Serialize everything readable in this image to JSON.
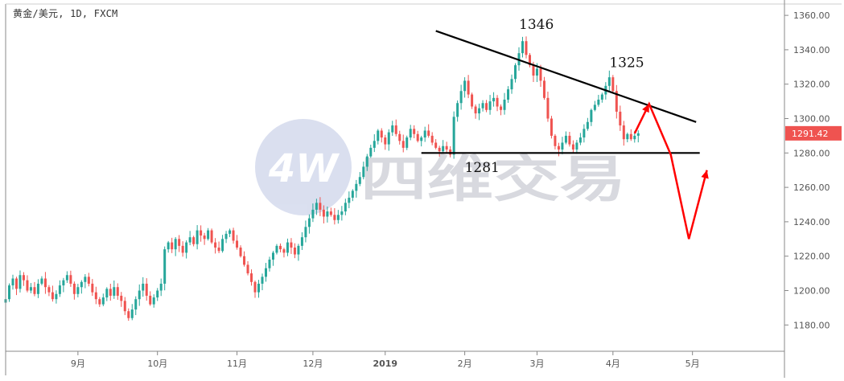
{
  "header": {
    "symbol_line": "黄金/美元, 1D, FXCM"
  },
  "watermark": {
    "logo_text": "4W",
    "text": "四维交易"
  },
  "price_tag": {
    "value": "1291.42",
    "price": 1291.42,
    "color": "#ef5350"
  },
  "colors": {
    "up": "#26a69a",
    "down": "#ef5350",
    "trendline": "#000000",
    "projection": "#ff0000",
    "grid": "#e6e6e6",
    "watermark_circle": "#d9deef"
  },
  "chart_data": {
    "type": "candlestick",
    "title": "",
    "xlabel": "",
    "ylabel": "",
    "ylim": [
      1165,
      1365
    ],
    "y_ticks": [
      "1360.00",
      "1340.00",
      "1320.00",
      "1300.00",
      "1280.00",
      "1260.00",
      "1240.00",
      "1220.00",
      "1200.00",
      "1180.00"
    ],
    "x_ticks": [
      "9月",
      "10月",
      "11月",
      "12月",
      "2019",
      "2月",
      "3月",
      "4月",
      "5月"
    ],
    "x_tick_days": [
      20,
      42,
      64,
      85,
      105,
      127,
      147,
      168,
      190
    ],
    "bold_x_tick": "2019",
    "grid": false,
    "daily_close": [
      1195,
      1203,
      1207,
      1201,
      1209,
      1206,
      1200,
      1202,
      1198,
      1204,
      1207,
      1202,
      1199,
      1195,
      1198,
      1203,
      1206,
      1209,
      1204,
      1198,
      1202,
      1205,
      1208,
      1204,
      1199,
      1195,
      1192,
      1196,
      1201,
      1197,
      1202,
      1197,
      1194,
      1188,
      1184,
      1189,
      1195,
      1200,
      1204,
      1197,
      1192,
      1196,
      1200,
      1204,
      1224,
      1228,
      1224,
      1230,
      1226,
      1222,
      1228,
      1231,
      1227,
      1235,
      1232,
      1230,
      1235,
      1228,
      1225,
      1223,
      1230,
      1233,
      1235,
      1229,
      1225,
      1220,
      1215,
      1210,
      1205,
      1199,
      1204,
      1208,
      1213,
      1218,
      1222,
      1226,
      1224,
      1222,
      1228,
      1225,
      1221,
      1226,
      1231,
      1237,
      1242,
      1247,
      1251,
      1247,
      1243,
      1246,
      1244,
      1241,
      1244,
      1246,
      1251,
      1254,
      1258,
      1262,
      1266,
      1272,
      1278,
      1283,
      1287,
      1293,
      1289,
      1285,
      1292,
      1296,
      1291,
      1287,
      1283,
      1289,
      1294,
      1291,
      1287,
      1289,
      1293,
      1290,
      1286,
      1283,
      1281,
      1284,
      1282,
      1279,
      1301,
      1309,
      1316,
      1322,
      1314,
      1307,
      1303,
      1306,
      1309,
      1305,
      1310,
      1312,
      1307,
      1305,
      1311,
      1317,
      1323,
      1331,
      1338,
      1345,
      1337,
      1331,
      1325,
      1329,
      1322,
      1312,
      1300,
      1290,
      1284,
      1282,
      1286,
      1290,
      1285,
      1282,
      1286,
      1289,
      1294,
      1298,
      1305,
      1308,
      1311,
      1314,
      1319,
      1324,
      1316,
      1304,
      1296,
      1288,
      1291,
      1288,
      1290,
      1291.42
    ],
    "lines": [
      {
        "name": "resistance",
        "color": "#000000",
        "points": [
          [
            119,
            1351
          ],
          [
            191,
            1298
          ]
        ]
      },
      {
        "name": "support",
        "color": "#000000",
        "points": [
          [
            115,
            1280
          ],
          [
            192,
            1280
          ]
        ]
      },
      {
        "name": "projection",
        "color": "#ff0000",
        "points": [
          [
            174,
            1291.4
          ],
          [
            178,
            1308.5
          ],
          [
            184,
            1279
          ],
          [
            189,
            1230
          ],
          [
            194,
            1270
          ]
        ],
        "arrowheads": [
          1,
          4
        ]
      }
    ],
    "annotations": [
      {
        "text": "1346",
        "day": 142,
        "price": 1352
      },
      {
        "text": "1325",
        "day": 167,
        "price": 1330
      },
      {
        "text": "1281",
        "day": 127,
        "price": 1269
      }
    ]
  }
}
